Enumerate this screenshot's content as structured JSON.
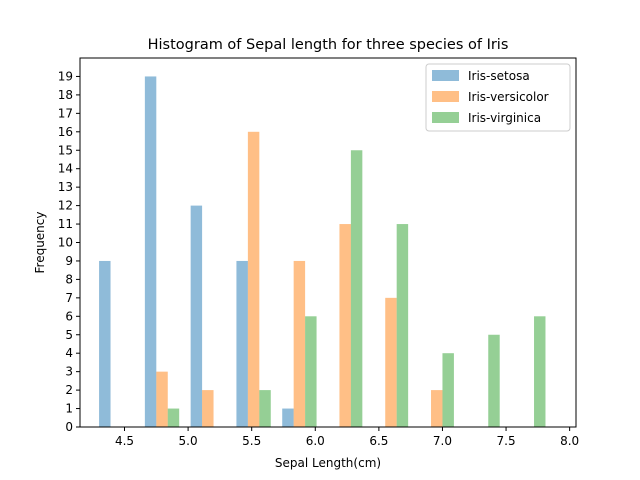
{
  "chart_data": {
    "type": "bar",
    "title": "Histogram of Sepal length for three species of Iris",
    "xlabel": "Sepal Length(cm)",
    "ylabel": "Frequency",
    "xlim": [
      4.15,
      8.05
    ],
    "ylim": [
      0,
      20
    ],
    "xticks": [
      4.5,
      5.0,
      5.5,
      6.0,
      6.5,
      7.0,
      7.5,
      8.0
    ],
    "xtick_labels": [
      "4.5",
      "5.0",
      "5.5",
      "6.0",
      "6.5",
      "7.0",
      "7.5",
      "8.0"
    ],
    "yticks": [
      0,
      1,
      2,
      3,
      4,
      5,
      6,
      7,
      8,
      9,
      10,
      11,
      12,
      13,
      14,
      15,
      16,
      17,
      18,
      19
    ],
    "ytick_labels": [
      "0",
      "1",
      "2",
      "3",
      "4",
      "5",
      "6",
      "7",
      "8",
      "9",
      "10",
      "11",
      "12",
      "13",
      "14",
      "15",
      "16",
      "17",
      "18",
      "19"
    ],
    "bin_edges": [
      4.3,
      4.66,
      5.02,
      5.38,
      5.74,
      6.1,
      6.46,
      6.82,
      7.18,
      7.54,
      7.9
    ],
    "bar_width": 0.09,
    "grid": false,
    "legend_placement": "top-right",
    "series": [
      {
        "name": "Iris-setosa",
        "color": "#1f77b4",
        "values": [
          9,
          19,
          12,
          9,
          1,
          0,
          0,
          0,
          0,
          0
        ]
      },
      {
        "name": "Iris-versicolor",
        "color": "#ff7f0e",
        "values": [
          0,
          3,
          2,
          16,
          9,
          11,
          7,
          2,
          0,
          0
        ]
      },
      {
        "name": "Iris-virginica",
        "color": "#2ca02c",
        "values": [
          0,
          1,
          0,
          2,
          6,
          15,
          11,
          4,
          5,
          6
        ]
      }
    ],
    "bar_opacity": 0.5
  }
}
